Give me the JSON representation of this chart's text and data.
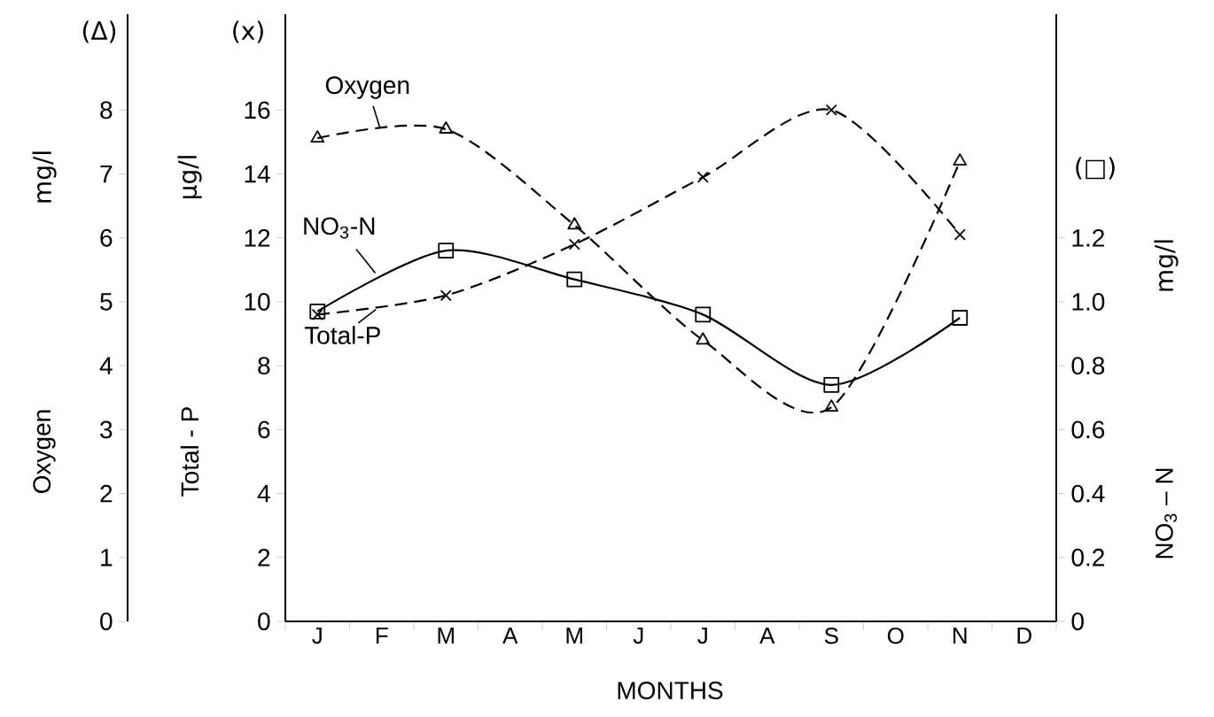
{
  "chart_data": {
    "type": "line",
    "categories": [
      "J",
      "F",
      "M",
      "A",
      "M",
      "J",
      "J",
      "A",
      "S",
      "O",
      "N",
      "D"
    ],
    "xlabel": "MONTHS",
    "ylabel": "Total - P",
    "y2label": "NO$_{3}$ – N",
    "y3label": "Oxygen",
    "ylim": [
      0,
      19
    ],
    "yticks": [
      0,
      2,
      4,
      6,
      8,
      10,
      12,
      14,
      16
    ],
    "y2lim": [
      0,
      1.9
    ],
    "y2ticks": [
      0,
      0.2,
      0.4,
      0.6,
      0.8,
      {
        "value": 1,
        "label": "1.0"
      },
      1.2
    ],
    "y3lim": [
      0,
      9.5
    ],
    "y3ticks": [
      0,
      1,
      2,
      3,
      4,
      5,
      6,
      7,
      8
    ],
    "series": [
      {
        "name": "Oxygen",
        "axis": "y3",
        "color": "#000000",
        "marker": "triangle",
        "line_style": "dashed",
        "values": [
          7.56,
          null,
          7.7,
          null,
          6.2,
          null,
          4.4,
          null,
          3.35,
          null,
          7.2,
          null
        ]
      },
      {
        "name": "Total-P",
        "axis": "y",
        "color": "#000000",
        "marker": "cross",
        "line_style": "dashed",
        "values": [
          9.6,
          null,
          10.2,
          null,
          11.8,
          null,
          13.9,
          null,
          16.0,
          null,
          12.1,
          null
        ]
      },
      {
        "name": "NO$_{3}$-N",
        "axis": "y2",
        "color": "#000000",
        "marker": "square",
        "line_style": "solid",
        "values": [
          0.97,
          null,
          1.16,
          null,
          1.07,
          null,
          0.96,
          null,
          0.74,
          null,
          0.95,
          null
        ]
      }
    ],
    "annotations": [
      "(Δ)",
      "mg/l",
      "(x)",
      "µg/l",
      "(□)",
      "mg/l"
    ],
    "grid": false
  }
}
